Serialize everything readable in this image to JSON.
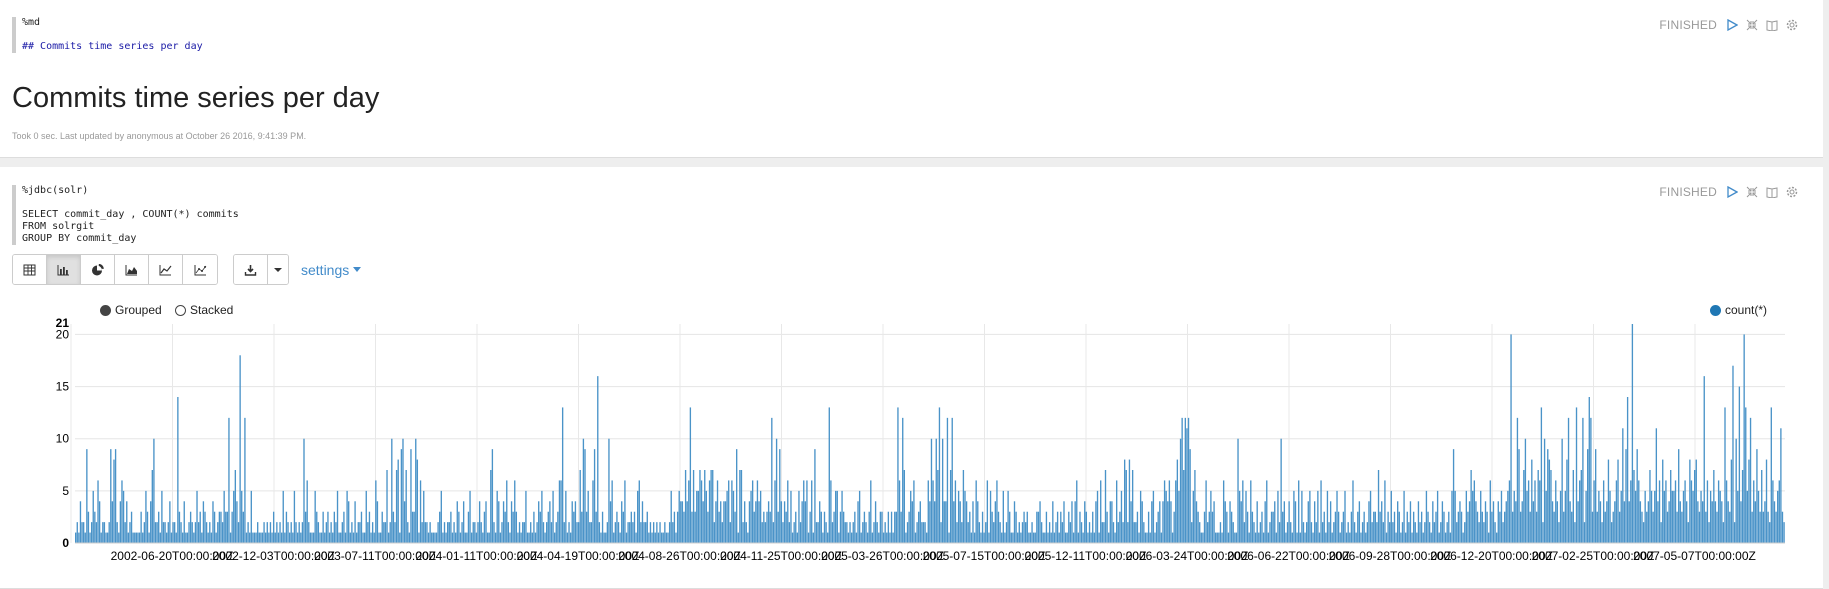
{
  "paragraphs": [
    {
      "editor_lines": [
        "%md",
        "",
        "## Commits time series per day"
      ],
      "status": "FINISHED",
      "output_title": "Commits time series per day",
      "footer": "Took 0 sec. Last updated by anonymous at October 26 2016, 9:41:39 PM."
    },
    {
      "editor_lines": [
        "%jdbc(solr)",
        "",
        "SELECT commit_day , COUNT(*) commits",
        "FROM solrgit",
        "GROUP BY commit_day"
      ],
      "status": "FINISHED",
      "toolbar": {
        "chart_types": [
          "table-icon",
          "bar-chart-icon",
          "pie-chart-icon",
          "area-chart-icon",
          "line-chart-icon",
          "scatter-chart-icon"
        ],
        "active": "bar-chart-icon",
        "settings_label": "settings"
      },
      "legend_modes": {
        "grouped": "Grouped",
        "stacked": "Stacked",
        "selected": "grouped"
      },
      "colors": {
        "bar": "#4a93c8",
        "legend": "#1f77b4",
        "link": "#428bca"
      }
    }
  ],
  "chart_data": {
    "type": "bar",
    "series": [
      {
        "name": "count(*)",
        "color": "#1f77b4"
      }
    ],
    "ymax_label": "21",
    "y_ticks": [
      0,
      5,
      10,
      15,
      20
    ],
    "ylim": [
      0,
      21
    ],
    "x_tick_labels": [
      "2002-06-20T00:00:00Z",
      "2002-12-03T00:00:00Z",
      "2003-07-11T00:00:00Z",
      "2004-01-11T00:00:00Z",
      "2004-04-19T00:00:00Z",
      "2004-08-26T00:00:00Z",
      "2004-11-25T00:00:00Z",
      "2005-03-26T00:00:00Z",
      "2005-07-15T00:00:00Z",
      "2005-12-11T00:00:00Z",
      "2006-03-24T00:00:00Z",
      "2006-06-22T00:00:00Z",
      "2006-09-28T00:00:00Z",
      "2006-12-20T00:00:00Z",
      "2007-02-25T00:00:00Z",
      "2007-05-07T00:00:00Z"
    ],
    "values": [
      1,
      2,
      1,
      4,
      2,
      2,
      1,
      9,
      3,
      1,
      2,
      5,
      3,
      2,
      6,
      4,
      1,
      2,
      2,
      1,
      1,
      2,
      9,
      4,
      8,
      9,
      2,
      1,
      4,
      6,
      5,
      2,
      4,
      1,
      2,
      3,
      1,
      1,
      1,
      1,
      1,
      3,
      1,
      2,
      5,
      3,
      1,
      4,
      7,
      10,
      2,
      2,
      3,
      1,
      5,
      2,
      2,
      1,
      2,
      4,
      1,
      2,
      2,
      1,
      14,
      3,
      2,
      1,
      4,
      1,
      1,
      2,
      3,
      2,
      1,
      2,
      5,
      2,
      3,
      1,
      4,
      3,
      2,
      1,
      2,
      1,
      4,
      3,
      1,
      2,
      3,
      3,
      2,
      5,
      3,
      3,
      12,
      1,
      3,
      5,
      7,
      4,
      2,
      18,
      5,
      3,
      12,
      1,
      2,
      1,
      5,
      1,
      1,
      1,
      2,
      1,
      1,
      1,
      2,
      1,
      2,
      1,
      2,
      1,
      3,
      1,
      2,
      1,
      2,
      1,
      5,
      1,
      3,
      2,
      1,
      2,
      1,
      5,
      2,
      1,
      2,
      1,
      2,
      10,
      3,
      6,
      2,
      1,
      1,
      1,
      5,
      3,
      2,
      1,
      1,
      3,
      1,
      2,
      3,
      1,
      2,
      1,
      3,
      2,
      5,
      1,
      1,
      2,
      3,
      1,
      5,
      4,
      1,
      2,
      1,
      4,
      1,
      2,
      2,
      3,
      1,
      1,
      5,
      2,
      3,
      1,
      2,
      1,
      6,
      4,
      1,
      1,
      3,
      2,
      2,
      7,
      1,
      2,
      10,
      3,
      2,
      7,
      8,
      1,
      9,
      10,
      4,
      7,
      2,
      1,
      9,
      3,
      3,
      10,
      8,
      1,
      6,
      2,
      5,
      2,
      2,
      1,
      2,
      1,
      1,
      1,
      1,
      2,
      3,
      5,
      1,
      2,
      1,
      2,
      2,
      3,
      1,
      2,
      1,
      4,
      3,
      1,
      2,
      4,
      1,
      1,
      3,
      5,
      1,
      2,
      2,
      1,
      2,
      4,
      2,
      1,
      3,
      4,
      1,
      1,
      7,
      9,
      2,
      1,
      5,
      4,
      1,
      2,
      4,
      3,
      6,
      2,
      1,
      4,
      3,
      6,
      3,
      1,
      2,
      1,
      2,
      2,
      5,
      1,
      1,
      2,
      1,
      3,
      1,
      2,
      4,
      3,
      5,
      2,
      1,
      2,
      3,
      4,
      2,
      5,
      1,
      2,
      3,
      6,
      6,
      13,
      2,
      5,
      1,
      2,
      1,
      4,
      3,
      4,
      2,
      2,
      7,
      3,
      10,
      9,
      3,
      5,
      2,
      2,
      6,
      9,
      3,
      16,
      2,
      1,
      3,
      1,
      1,
      2,
      10,
      4,
      6,
      1,
      2,
      3,
      2,
      1,
      4,
      3,
      6,
      1,
      2,
      2,
      3,
      2,
      3,
      1,
      5,
      6,
      2,
      4,
      2,
      2,
      3,
      1,
      2,
      1,
      2,
      1,
      2,
      1,
      2,
      1,
      1,
      2,
      1,
      1,
      2,
      5,
      2,
      3,
      1,
      3,
      5,
      4,
      4,
      3,
      7,
      4,
      6,
      13,
      3,
      7,
      3,
      5,
      5,
      7,
      6,
      4,
      7,
      5,
      3,
      6,
      7,
      7,
      2,
      4,
      6,
      3,
      4,
      2,
      4,
      4,
      5,
      6,
      2,
      6,
      5,
      3,
      9,
      1,
      7,
      7,
      2,
      4,
      2,
      1,
      4,
      5,
      6,
      3,
      4,
      6,
      4,
      5,
      2,
      3,
      2,
      3,
      4,
      3,
      12,
      2,
      6,
      10,
      3,
      9,
      4,
      2,
      4,
      3,
      6,
      2,
      5,
      1,
      2,
      3,
      1,
      5,
      2,
      4,
      6,
      4,
      6,
      1,
      3,
      6,
      1,
      9,
      2,
      2,
      4,
      3,
      1,
      3,
      2,
      1,
      13,
      6,
      2,
      3,
      5,
      5,
      1,
      3,
      5,
      3,
      2,
      2,
      1,
      2,
      1,
      2,
      3,
      1,
      4,
      5,
      1,
      2,
      3,
      2,
      1,
      3,
      6,
      1,
      2,
      4,
      2,
      1,
      3,
      3,
      1,
      2,
      1,
      3,
      1,
      3,
      1,
      3,
      3,
      13,
      6,
      3,
      12,
      7,
      1,
      2,
      3,
      5,
      4,
      6,
      1,
      2,
      3,
      4,
      2,
      2,
      2,
      1,
      6,
      4,
      10,
      6,
      4,
      10,
      7,
      13,
      2,
      10,
      4,
      4,
      12,
      1,
      7,
      12,
      4,
      6,
      2,
      5,
      4,
      2,
      7,
      5,
      4,
      2,
      3,
      1,
      4,
      1,
      6,
      4,
      2,
      1,
      3,
      1,
      2,
      6,
      1,
      5,
      3,
      2,
      4,
      6,
      3,
      2,
      1,
      5,
      1,
      2,
      5,
      3,
      1,
      1,
      4,
      3,
      1,
      2,
      1,
      2,
      3,
      2,
      3,
      1,
      1,
      2,
      1,
      1,
      3,
      3,
      4,
      2,
      1,
      1,
      3,
      1,
      2,
      1,
      4,
      1,
      2,
      3,
      1,
      3,
      2,
      4,
      1,
      1,
      3,
      2,
      4,
      1,
      4,
      6,
      1,
      3,
      2,
      1,
      4,
      3,
      1,
      2,
      1,
      3,
      1,
      4,
      5,
      1,
      6,
      2,
      2,
      7,
      3,
      1,
      4,
      4,
      2,
      1,
      6,
      2,
      3,
      5,
      2,
      8,
      7,
      2,
      8,
      4,
      7,
      2,
      2,
      3,
      1,
      5,
      4,
      2,
      1,
      1,
      3,
      1,
      4,
      5,
      1,
      2,
      3,
      4,
      1,
      4,
      6,
      5,
      4,
      6,
      4,
      1,
      3,
      6,
      8,
      5,
      10,
      12,
      7,
      12,
      11,
      12,
      9,
      2,
      5,
      7,
      4,
      3,
      2,
      1,
      1,
      3,
      6,
      2,
      3,
      5,
      3,
      4,
      1,
      1,
      1,
      2,
      1,
      6,
      4,
      3,
      1,
      4,
      3,
      2,
      1,
      1,
      10,
      5,
      4,
      6,
      2,
      5,
      3,
      1,
      6,
      3,
      2,
      1,
      4,
      1,
      2,
      3,
      1,
      4,
      6,
      1,
      2,
      3,
      3,
      4,
      1,
      5,
      2,
      10,
      3,
      4,
      1,
      2,
      4,
      2,
      1,
      5,
      4,
      1,
      6,
      1,
      5,
      2,
      1,
      2,
      4,
      5,
      2,
      1,
      4,
      2,
      5,
      1,
      6,
      2,
      3,
      1,
      5,
      2,
      4,
      1,
      2,
      3,
      5,
      3,
      1,
      2,
      3,
      5,
      1,
      2,
      1,
      3,
      6,
      2,
      1,
      3,
      4,
      1,
      2,
      3,
      1,
      2,
      4,
      5,
      2,
      3,
      3,
      2,
      7,
      3,
      4,
      2,
      6,
      1,
      3,
      2,
      5,
      2,
      3,
      1,
      4,
      3,
      1,
      2,
      5,
      1,
      3,
      2,
      4,
      1,
      3,
      2,
      1,
      4,
      2,
      3,
      1,
      2,
      5,
      3,
      2,
      1,
      4,
      2,
      3,
      5,
      1,
      2,
      4,
      3,
      1,
      2,
      3,
      1,
      5,
      9,
      5,
      2,
      3,
      4,
      3,
      1,
      2,
      5,
      3,
      4,
      7,
      5,
      6,
      4,
      3,
      2,
      5,
      3,
      2,
      4,
      3,
      1,
      6,
      3,
      4,
      2,
      1,
      4,
      3,
      5,
      2,
      3,
      4,
      5,
      6,
      20,
      3,
      5,
      4,
      12,
      9,
      3,
      4,
      7,
      10,
      5,
      6,
      3,
      8,
      4,
      6,
      3,
      7,
      6,
      13,
      2,
      10,
      5,
      9,
      8,
      7,
      4,
      3,
      6,
      4,
      2,
      5,
      10,
      3,
      5,
      8,
      12,
      4,
      3,
      7,
      2,
      13,
      4,
      6,
      7,
      12,
      2,
      5,
      9,
      14,
      12,
      3,
      6,
      9,
      3,
      5,
      4,
      2,
      6,
      3,
      4,
      8,
      5,
      2,
      3,
      4,
      6,
      8,
      3,
      5,
      11,
      4,
      9,
      14,
      4,
      6,
      21,
      7,
      5,
      9,
      6,
      4,
      3,
      2,
      5,
      3,
      4,
      7,
      5,
      3,
      5,
      11,
      4,
      6,
      2,
      8,
      5,
      6,
      3,
      4,
      7,
      5,
      5,
      6,
      3,
      9,
      4,
      3,
      5,
      6,
      4,
      2,
      8,
      6,
      5,
      7,
      8,
      4,
      3,
      5,
      4,
      16,
      3,
      6,
      2,
      5,
      4,
      7,
      4,
      3,
      6,
      5,
      4,
      2,
      13,
      6,
      4,
      3,
      8,
      17,
      2,
      10,
      5,
      15,
      4,
      7,
      20,
      13,
      5,
      8,
      12,
      3,
      6,
      4,
      9,
      5,
      3,
      7,
      3,
      4,
      8,
      3,
      2,
      13,
      6,
      4,
      3,
      5,
      6,
      11,
      3,
      2
    ]
  }
}
